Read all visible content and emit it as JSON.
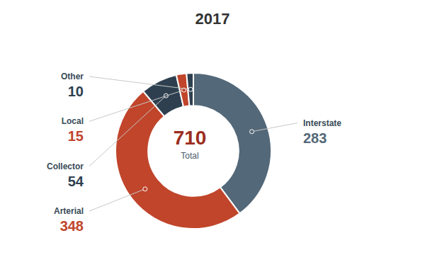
{
  "chart_data": {
    "type": "donut",
    "title": "2017",
    "categories": [
      "Interstate",
      "Arterial",
      "Collector",
      "Local",
      "Other"
    ],
    "values": [
      283,
      348,
      54,
      15,
      10
    ],
    "colors": [
      "#536878",
      "#c0452b",
      "#2e4050",
      "#c0452b",
      "#2e4050"
    ],
    "total": 710,
    "total_label": "Total",
    "data_labels": true
  }
}
